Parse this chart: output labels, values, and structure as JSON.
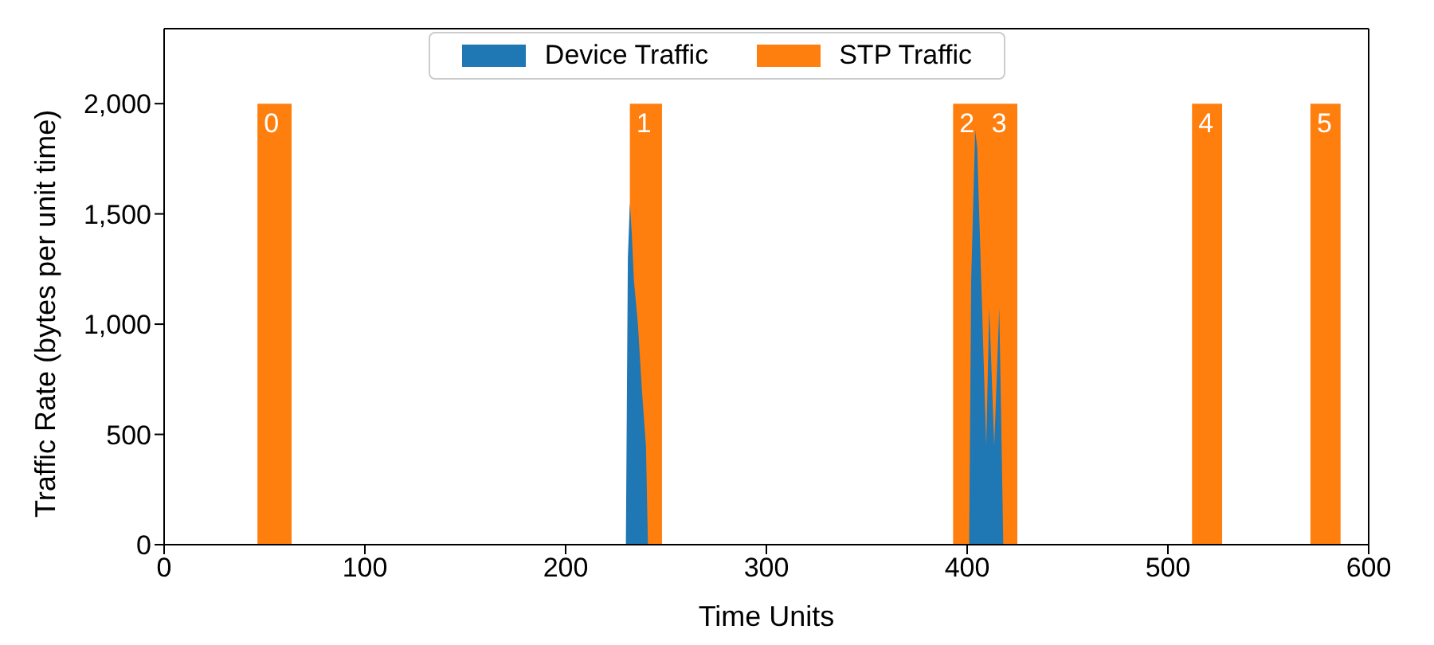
{
  "chart_data": {
    "type": "area",
    "xlabel": "Time Units",
    "ylabel": "Traffic Rate (bytes per unit time)",
    "xlim": [
      0,
      600
    ],
    "xticks": [
      0,
      100,
      200,
      300,
      400,
      500,
      600
    ],
    "ylim": [
      0,
      2340
    ],
    "yticks": [
      0,
      500,
      {
        "value": 1000,
        "label": "1,000"
      },
      {
        "value": 1500,
        "label": "1,500"
      },
      {
        "value": 2000,
        "label": "2,000"
      }
    ],
    "legend": "top",
    "grid": false,
    "series": [
      {
        "name": "Device Traffic",
        "color": "#1f77b4",
        "x": [
          230,
          231,
          232,
          233,
          234,
          236,
          238,
          240,
          241,
          242,
          401,
          402,
          404,
          405,
          407,
          409.5,
          411,
          413.5,
          416,
          418
        ],
        "values": [
          0,
          1300,
          1550,
          1400,
          1200,
          1000,
          700,
          450,
          0,
          0,
          0,
          1200,
          1880,
          1800,
          1200,
          450,
          1075,
          450,
          1075,
          0
        ]
      },
      {
        "name": "STP Traffic",
        "color": "#ff7f0e",
        "x": [
          46.5,
          46.5,
          63.5,
          63.5,
          232,
          232,
          248,
          248,
          393,
          393,
          409,
          409,
          409,
          409,
          425,
          425,
          512,
          512,
          527,
          527,
          571,
          571,
          586,
          586
        ],
        "values": [
          0,
          2000,
          2000,
          0,
          0,
          2000,
          2000,
          0,
          0,
          2000,
          2000,
          0,
          0,
          2000,
          2000,
          0,
          0,
          2000,
          2000,
          0,
          0,
          2000,
          2000,
          0
        ]
      }
    ],
    "annotations": [
      {
        "text": "0",
        "x": 46.5,
        "y": 2000
      },
      {
        "text": "1",
        "x": 232,
        "y": 2000
      },
      {
        "text": "2",
        "x": 393,
        "y": 2000
      },
      {
        "text": "3",
        "x": 409,
        "y": 2000
      },
      {
        "text": "4",
        "x": 512,
        "y": 2000
      },
      {
        "text": "5",
        "x": 571,
        "y": 2000
      }
    ]
  }
}
